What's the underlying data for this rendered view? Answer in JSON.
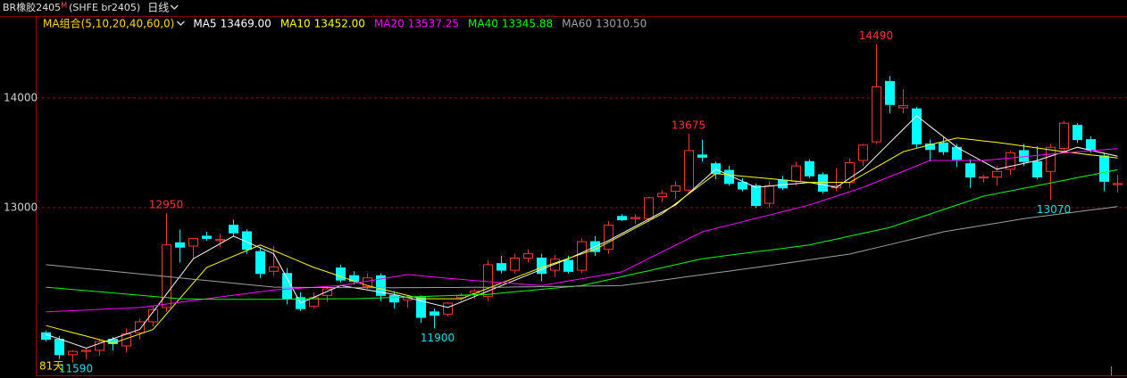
{
  "header": {
    "title": "BR橡胶2405",
    "title_mark": "M",
    "code": "(SHFE br2405)",
    "period": "日线"
  },
  "chart_data": {
    "type": "candlestick",
    "ma_group_label": "MA组合(5,10,20,40,60,0)",
    "open": [
      11860,
      11800,
      11660,
      11690,
      11700,
      11800,
      11740,
      11860,
      11960,
      12090,
      12680,
      12650,
      12740,
      12700,
      12840,
      12780,
      12600,
      12420,
      12400,
      12180,
      12100,
      12200,
      12450,
      12380,
      12280,
      12380,
      12200,
      12160,
      12180,
      12050,
      12030,
      12180,
      12220,
      12190,
      12490,
      12430,
      12540,
      12540,
      12430,
      12520,
      12430,
      12690,
      12620,
      12920,
      12900,
      12900,
      13100,
      13150,
      13160,
      13480,
      13400,
      13340,
      13230,
      13200,
      13040,
      13250,
      13240,
      13420,
      13300,
      13180,
      13230,
      13430,
      13600,
      14150,
      13910,
      13900,
      13580,
      13590,
      13550,
      13400,
      13270,
      13280,
      13350,
      13520,
      13420,
      13330,
      13540,
      13750,
      13620,
      13470,
      13210
    ],
    "high": [
      11880,
      11830,
      11700,
      11720,
      11800,
      11820,
      11900,
      11990,
      12100,
      12950,
      12800,
      12720,
      12780,
      12760,
      12890,
      12800,
      12640,
      12650,
      12450,
      12230,
      12230,
      12280,
      12480,
      12420,
      12400,
      12400,
      12240,
      12200,
      12200,
      12080,
      12140,
      12220,
      12260,
      12520,
      12560,
      12580,
      12620,
      12580,
      12570,
      12560,
      12720,
      12740,
      12880,
      12940,
      12940,
      13100,
      13160,
      13240,
      13675,
      13620,
      13420,
      13380,
      13270,
      13220,
      13240,
      13290,
      13420,
      13440,
      13320,
      13360,
      13450,
      13580,
      14490,
      14200,
      14080,
      13920,
      13620,
      13650,
      13580,
      13440,
      13300,
      13380,
      13520,
      13580,
      13560,
      13580,
      13790,
      13770,
      13650,
      13500,
      13300
    ],
    "low": [
      11780,
      11620,
      11590,
      11620,
      11650,
      11700,
      11680,
      11800,
      11920,
      12050,
      12500,
      12540,
      12700,
      12640,
      12740,
      12580,
      12360,
      12380,
      12120,
      12060,
      12080,
      12140,
      12320,
      12300,
      12260,
      12150,
      12080,
      12090,
      11950,
      11900,
      12010,
      12150,
      12170,
      12150,
      12400,
      12400,
      12500,
      12330,
      12370,
      12400,
      12400,
      12560,
      12580,
      12880,
      12850,
      12870,
      13050,
      13080,
      13130,
      13420,
      13260,
      13200,
      13150,
      13000,
      13000,
      13160,
      13200,
      13270,
      13130,
      13150,
      13180,
      13380,
      13580,
      13860,
      13860,
      13540,
      13420,
      13480,
      13370,
      13180,
      13230,
      13200,
      13300,
      13380,
      13260,
      13070,
      13500,
      13590,
      13500,
      13150,
      13140
    ],
    "close": [
      11800,
      11660,
      11690,
      11700,
      11780,
      11760,
      11850,
      11960,
      12070,
      12660,
      12640,
      12720,
      12720,
      12710,
      12770,
      12620,
      12400,
      12460,
      12170,
      12080,
      12180,
      12260,
      12340,
      12330,
      12360,
      12200,
      12140,
      12180,
      12000,
      12020,
      12130,
      12200,
      12240,
      12480,
      12430,
      12540,
      12580,
      12400,
      12530,
      12420,
      12690,
      12600,
      12840,
      12890,
      12910,
      13090,
      13130,
      13200,
      13520,
      13460,
      13310,
      13220,
      13170,
      13020,
      13200,
      13180,
      13380,
      13290,
      13150,
      13200,
      13410,
      13570,
      14100,
      13940,
      13930,
      13580,
      13530,
      13510,
      13440,
      13280,
      13280,
      13330,
      13500,
      13420,
      13280,
      13550,
      13770,
      13620,
      13530,
      13240,
      13220
    ],
    "up_color": "#ff3232",
    "down_color": "#00ffff",
    "series": [
      {
        "name": "MA5",
        "color": "#ffffff",
        "latest": {
          "value": 13469,
          "label": "13469.00"
        },
        "values": [
          11845,
          11803,
          11762,
          11720,
          11763,
          11805,
          11848,
          11890,
          12051,
          12213,
          12374,
          12535,
          12603,
          12672,
          12740,
          12687,
          12633,
          12580,
          12355,
          12130,
          12183,
          12237,
          12290,
          12270,
          12250,
          12230,
          12210,
          12180,
          12150,
          12120,
          12090,
          12140,
          12190,
          12240,
          12290,
          12339,
          12388,
          12437,
          12486,
          12535,
          12590,
          12645,
          12700,
          12765,
          12830,
          12895,
          12960,
          13025,
          13133,
          13242,
          13350,
          13295,
          13240,
          13185,
          13196,
          13208,
          13219,
          13230,
          13208,
          13185,
          13268,
          13350,
          13472,
          13594,
          13715,
          13837,
          13741,
          13646,
          13550,
          13483,
          13417,
          13350,
          13377,
          13403,
          13430,
          13470,
          13510,
          13550,
          13523,
          13496,
          13469
        ]
      },
      {
        "name": "MA10",
        "color": "#ffff00",
        "latest": {
          "value": 13452,
          "label": "13452.00"
        },
        "values": [
          11925,
          11893,
          11861,
          11829,
          11797,
          11765,
          11807,
          11848,
          11890,
          12031,
          12173,
          12314,
          12455,
          12506,
          12558,
          12609,
          12660,
          12609,
          12558,
          12506,
          12455,
          12414,
          12373,
          12331,
          12290,
          12260,
          12230,
          12200,
          12170,
          12170,
          12170,
          12170,
          12218,
          12265,
          12313,
          12360,
          12408,
          12455,
          12496,
          12538,
          12579,
          12620,
          12685,
          12750,
          12815,
          12880,
          12945,
          13036,
          13128,
          13219,
          13310,
          13299,
          13287,
          13276,
          13264,
          13253,
          13241,
          13230,
          13230,
          13230,
          13230,
          13300,
          13370,
          13440,
          13510,
          13541,
          13573,
          13604,
          13635,
          13622,
          13608,
          13595,
          13578,
          13561,
          13544,
          13527,
          13510,
          13496,
          13481,
          13467,
          13452
        ]
      },
      {
        "name": "MA20",
        "color": "#ff00ff",
        "latest": {
          "value": 13537.25,
          "label": "13537.25"
        },
        "values": [
          12050,
          12056,
          12061,
          12067,
          12073,
          12079,
          12084,
          12090,
          12106,
          12122,
          12138,
          12154,
          12170,
          12186,
          12202,
          12218,
          12234,
          12250,
          12258,
          12266,
          12274,
          12282,
          12290,
          12310,
          12330,
          12350,
          12370,
          12390,
          12379,
          12368,
          12357,
          12346,
          12335,
          12326,
          12317,
          12308,
          12299,
          12290,
          12311,
          12332,
          12353,
          12373,
          12394,
          12415,
          12476,
          12537,
          12598,
          12658,
          12719,
          12780,
          12811,
          12841,
          12872,
          12903,
          12933,
          12964,
          12994,
          13025,
          13065,
          13105,
          13145,
          13185,
          13234,
          13283,
          13332,
          13381,
          13430,
          13430,
          13430,
          13430,
          13430,
          13441,
          13453,
          13464,
          13476,
          13487,
          13499,
          13510,
          13519,
          13528,
          13537.25
        ]
      },
      {
        "name": "MA40",
        "color": "#00ff00",
        "latest": {
          "value": 13345.88,
          "label": "13345.88"
        },
        "values": [
          12275,
          12265,
          12254,
          12244,
          12233,
          12223,
          12212,
          12202,
          12191,
          12181,
          12170,
          12168,
          12166,
          12165,
          12164,
          12164,
          12164,
          12165,
          12166,
          12167,
          12168,
          12169,
          12170,
          12170,
          12174,
          12178,
          12182,
          12186,
          12190,
          12194,
          12198,
          12202,
          12206,
          12210,
          12221,
          12233,
          12244,
          12256,
          12267,
          12279,
          12290,
          12317,
          12344,
          12371,
          12399,
          12426,
          12453,
          12480,
          12508,
          12535,
          12551,
          12566,
          12582,
          12598,
          12613,
          12629,
          12644,
          12660,
          12687,
          12713,
          12740,
          12767,
          12793,
          12820,
          12861,
          12901,
          12942,
          12983,
          13024,
          13064,
          13105,
          13129,
          13153,
          13177,
          13201,
          13225,
          13249,
          13273,
          13297,
          13321,
          13345.88
        ]
      },
      {
        "name": "MA60",
        "color": "#a0a0a0",
        "latest": {
          "value": 13010.5,
          "label": "13010.50"
        },
        "values": [
          12480,
          12468,
          12456,
          12444,
          12432,
          12420,
          12408,
          12396,
          12384,
          12372,
          12360,
          12348,
          12336,
          12324,
          12312,
          12300,
          12288,
          12276,
          12274,
          12273,
          12272,
          12272,
          12271,
          12271,
          12270,
          12270,
          12270,
          12271,
          12271,
          12272,
          12272,
          12273,
          12274,
          12274,
          12275,
          12277,
          12278,
          12280,
          12282,
          12283,
          12285,
          12286,
          12288,
          12290,
          12306,
          12323,
          12340,
          12356,
          12373,
          12389,
          12406,
          12422,
          12439,
          12455,
          12472,
          12490,
          12507,
          12525,
          12542,
          12560,
          12577,
          12606,
          12635,
          12664,
          12693,
          12722,
          12751,
          12780,
          12800,
          12820,
          12840,
          12860,
          12880,
          12900,
          12916,
          12931,
          12947,
          12963,
          12979,
          12994,
          13010.5
        ]
      }
    ],
    "ylim": [
      11480,
      14600
    ],
    "yticks": [
      13000,
      14000
    ],
    "grid": true,
    "annotated_highs": [
      9,
      48,
      62
    ],
    "annotated_lows": [
      2,
      29,
      75
    ],
    "footer_label": "81天"
  }
}
